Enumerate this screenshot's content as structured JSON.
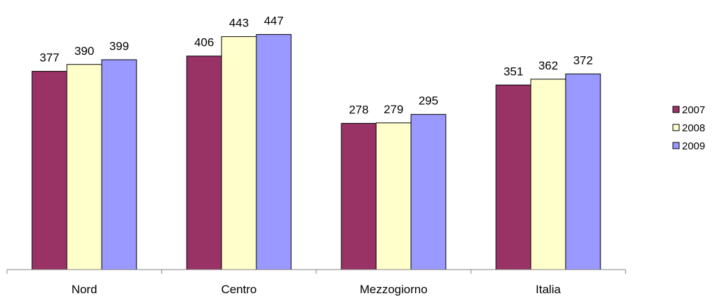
{
  "chart_data": {
    "type": "bar",
    "title": "",
    "xlabel": "",
    "ylabel": "",
    "categories": [
      "Nord",
      "Centro",
      "Mezzogiorno",
      "Italia"
    ],
    "series": [
      {
        "name": "2007",
        "color": "#993366",
        "values": [
          377,
          406,
          278,
          351
        ]
      },
      {
        "name": "2008",
        "color": "#FFFFCC",
        "values": [
          390,
          443,
          279,
          362
        ]
      },
      {
        "name": "2009",
        "color": "#9999FF",
        "values": [
          399,
          447,
          295,
          372
        ]
      }
    ],
    "ylim": [
      0,
      500
    ],
    "grid": false,
    "legend": "right",
    "data_labels": true
  }
}
